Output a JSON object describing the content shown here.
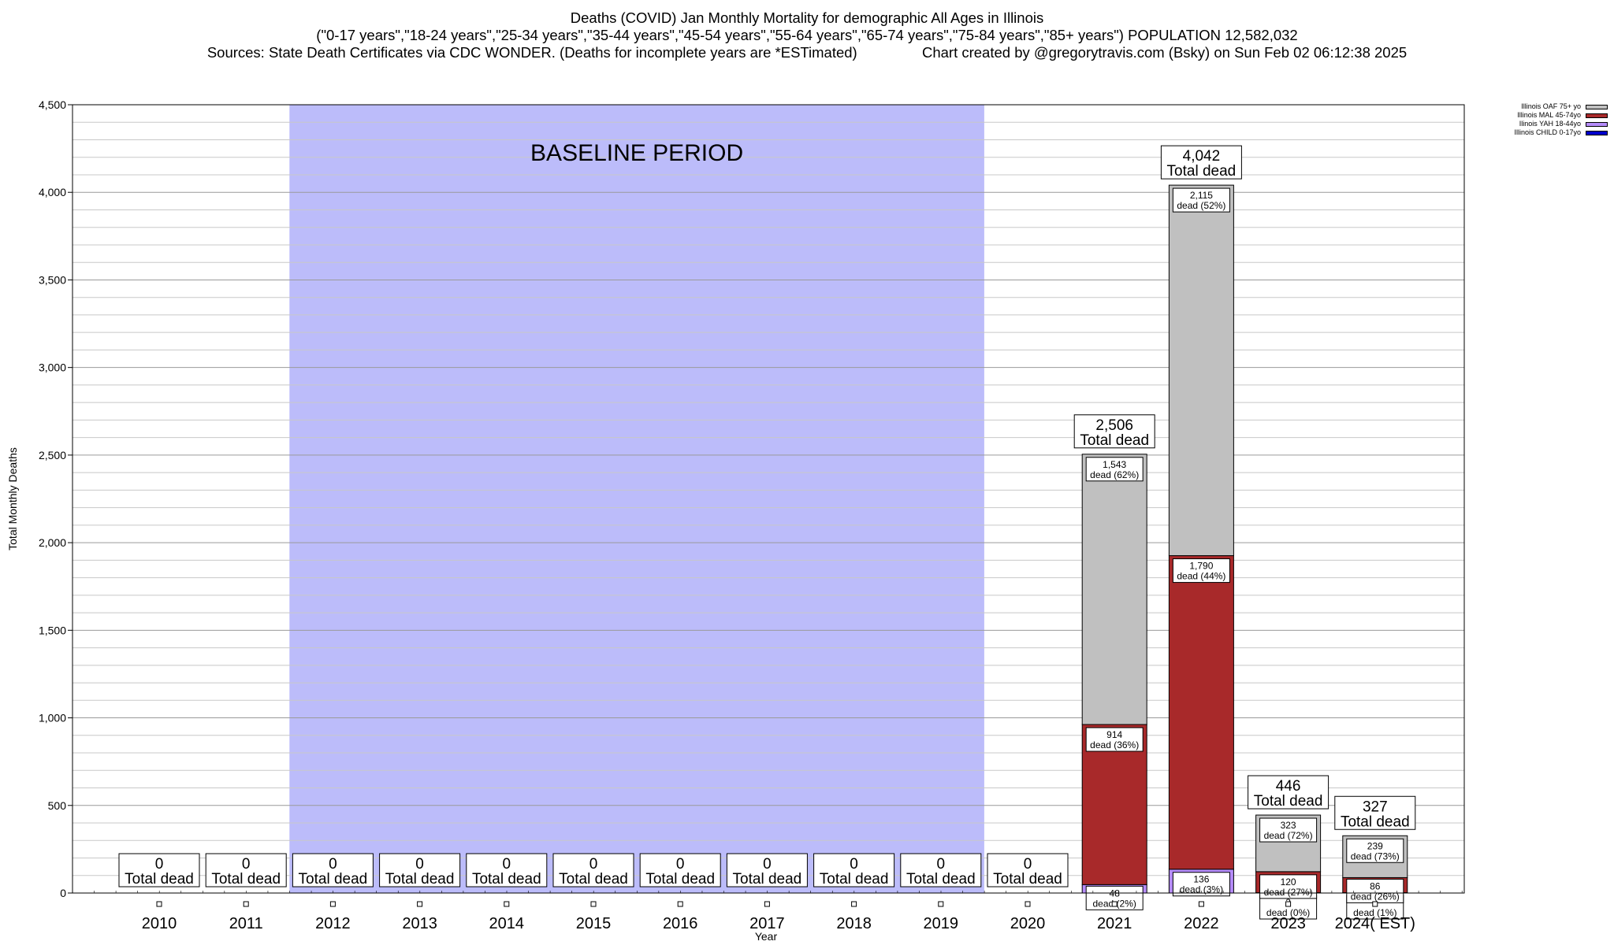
{
  "header": {
    "title": "Deaths (COVID) Jan Monthly Mortality for demographic All Ages in Illinois",
    "subtitle": "(\"0-17 years\",\"18-24 years\",\"25-34 years\",\"35-44 years\",\"45-54 years\",\"55-64 years\",\"65-74 years\",\"75-84 years\",\"85+ years\") POPULATION 12,582,032",
    "sources": "Sources: State Death Certificates via CDC WONDER. (Deaths for incomplete years are *ESTimated)",
    "credit": "Chart created by @gregorytravis.com (Bsky) on Sun Feb 02 06:12:38 2025"
  },
  "chart_data": {
    "type": "bar",
    "stacked": true,
    "xlabel": "Year",
    "ylabel": "Total Monthly Deaths",
    "ylim": [
      0,
      4500
    ],
    "yticks": [
      0,
      500,
      1000,
      1500,
      2000,
      2500,
      3000,
      3500,
      4000,
      4500
    ],
    "ytick_labels": [
      "0",
      "500",
      "1,000",
      "1,500",
      "2,000",
      "2,500",
      "3,000",
      "3,500",
      "4,000",
      "4,500"
    ],
    "minor_step": 100,
    "grid": true,
    "legend_position": "top-right",
    "categories": [
      "2010",
      "2011",
      "2012",
      "2013",
      "2014",
      "2015",
      "2016",
      "2017",
      "2018",
      "2019",
      "2020",
      "2021",
      "2022",
      "2023",
      "2024( EST)"
    ],
    "baseline": {
      "label": "BASELINE PERIOD",
      "from": "2012",
      "to": "2019",
      "color": "#bcbcfa"
    },
    "total_label": "Total dead",
    "segment_label": "dead",
    "series": [
      {
        "name": "Illinois CHILD 0-17yo",
        "color": "#0000cc",
        "values": [
          0,
          0,
          0,
          0,
          0,
          0,
          0,
          0,
          0,
          0,
          0,
          0,
          0,
          2,
          2
        ],
        "labels": [
          "",
          "",
          "",
          "",
          "",
          "",
          "",
          "",
          "",
          "",
          "",
          "",
          "",
          "2",
          "2"
        ],
        "pcts": [
          "",
          "",
          "",
          "",
          "",
          "",
          "",
          "",
          "",
          "",
          "",
          "",
          "",
          "0%",
          "1%"
        ]
      },
      {
        "name": "Ilinois YAH 18-44yo",
        "color": "#b68cfa",
        "values": [
          0,
          0,
          0,
          0,
          0,
          0,
          0,
          0,
          0,
          0,
          0,
          48,
          136,
          0,
          0
        ],
        "labels": [
          "",
          "",
          "",
          "",
          "",
          "",
          "",
          "",
          "",
          "",
          "",
          "48",
          "136",
          "",
          ""
        ],
        "pcts": [
          "",
          "",
          "",
          "",
          "",
          "",
          "",
          "",
          "",
          "",
          "",
          "2%",
          "3%",
          "",
          ""
        ]
      },
      {
        "name": "Illinois MAL 45-74yo",
        "color": "#a8292a",
        "values": [
          0,
          0,
          0,
          0,
          0,
          0,
          0,
          0,
          0,
          0,
          0,
          914,
          1790,
          120,
          86
        ],
        "labels": [
          "",
          "",
          "",
          "",
          "",
          "",
          "",
          "",
          "",
          "",
          "",
          "914",
          "1,790",
          "120",
          "86"
        ],
        "pcts": [
          "",
          "",
          "",
          "",
          "",
          "",
          "",
          "",
          "",
          "",
          "",
          "36%",
          "44%",
          "27%",
          "26%"
        ]
      },
      {
        "name": "Illinois OAF 75+ yo",
        "color": "#c0c0c0",
        "values": [
          0,
          0,
          0,
          0,
          0,
          0,
          0,
          0,
          0,
          0,
          0,
          1543,
          2115,
          323,
          239
        ],
        "labels": [
          "",
          "",
          "",
          "",
          "",
          "",
          "",
          "",
          "",
          "",
          "",
          "1,543",
          "2,115",
          "323",
          "239"
        ],
        "pcts": [
          "",
          "",
          "",
          "",
          "",
          "",
          "",
          "",
          "",
          "",
          "",
          "62%",
          "52%",
          "72%",
          "73%"
        ]
      }
    ],
    "totals": [
      "0",
      "0",
      "0",
      "0",
      "0",
      "0",
      "0",
      "0",
      "0",
      "0",
      "0",
      "2,506",
      "4,042",
      "446",
      "327"
    ]
  }
}
